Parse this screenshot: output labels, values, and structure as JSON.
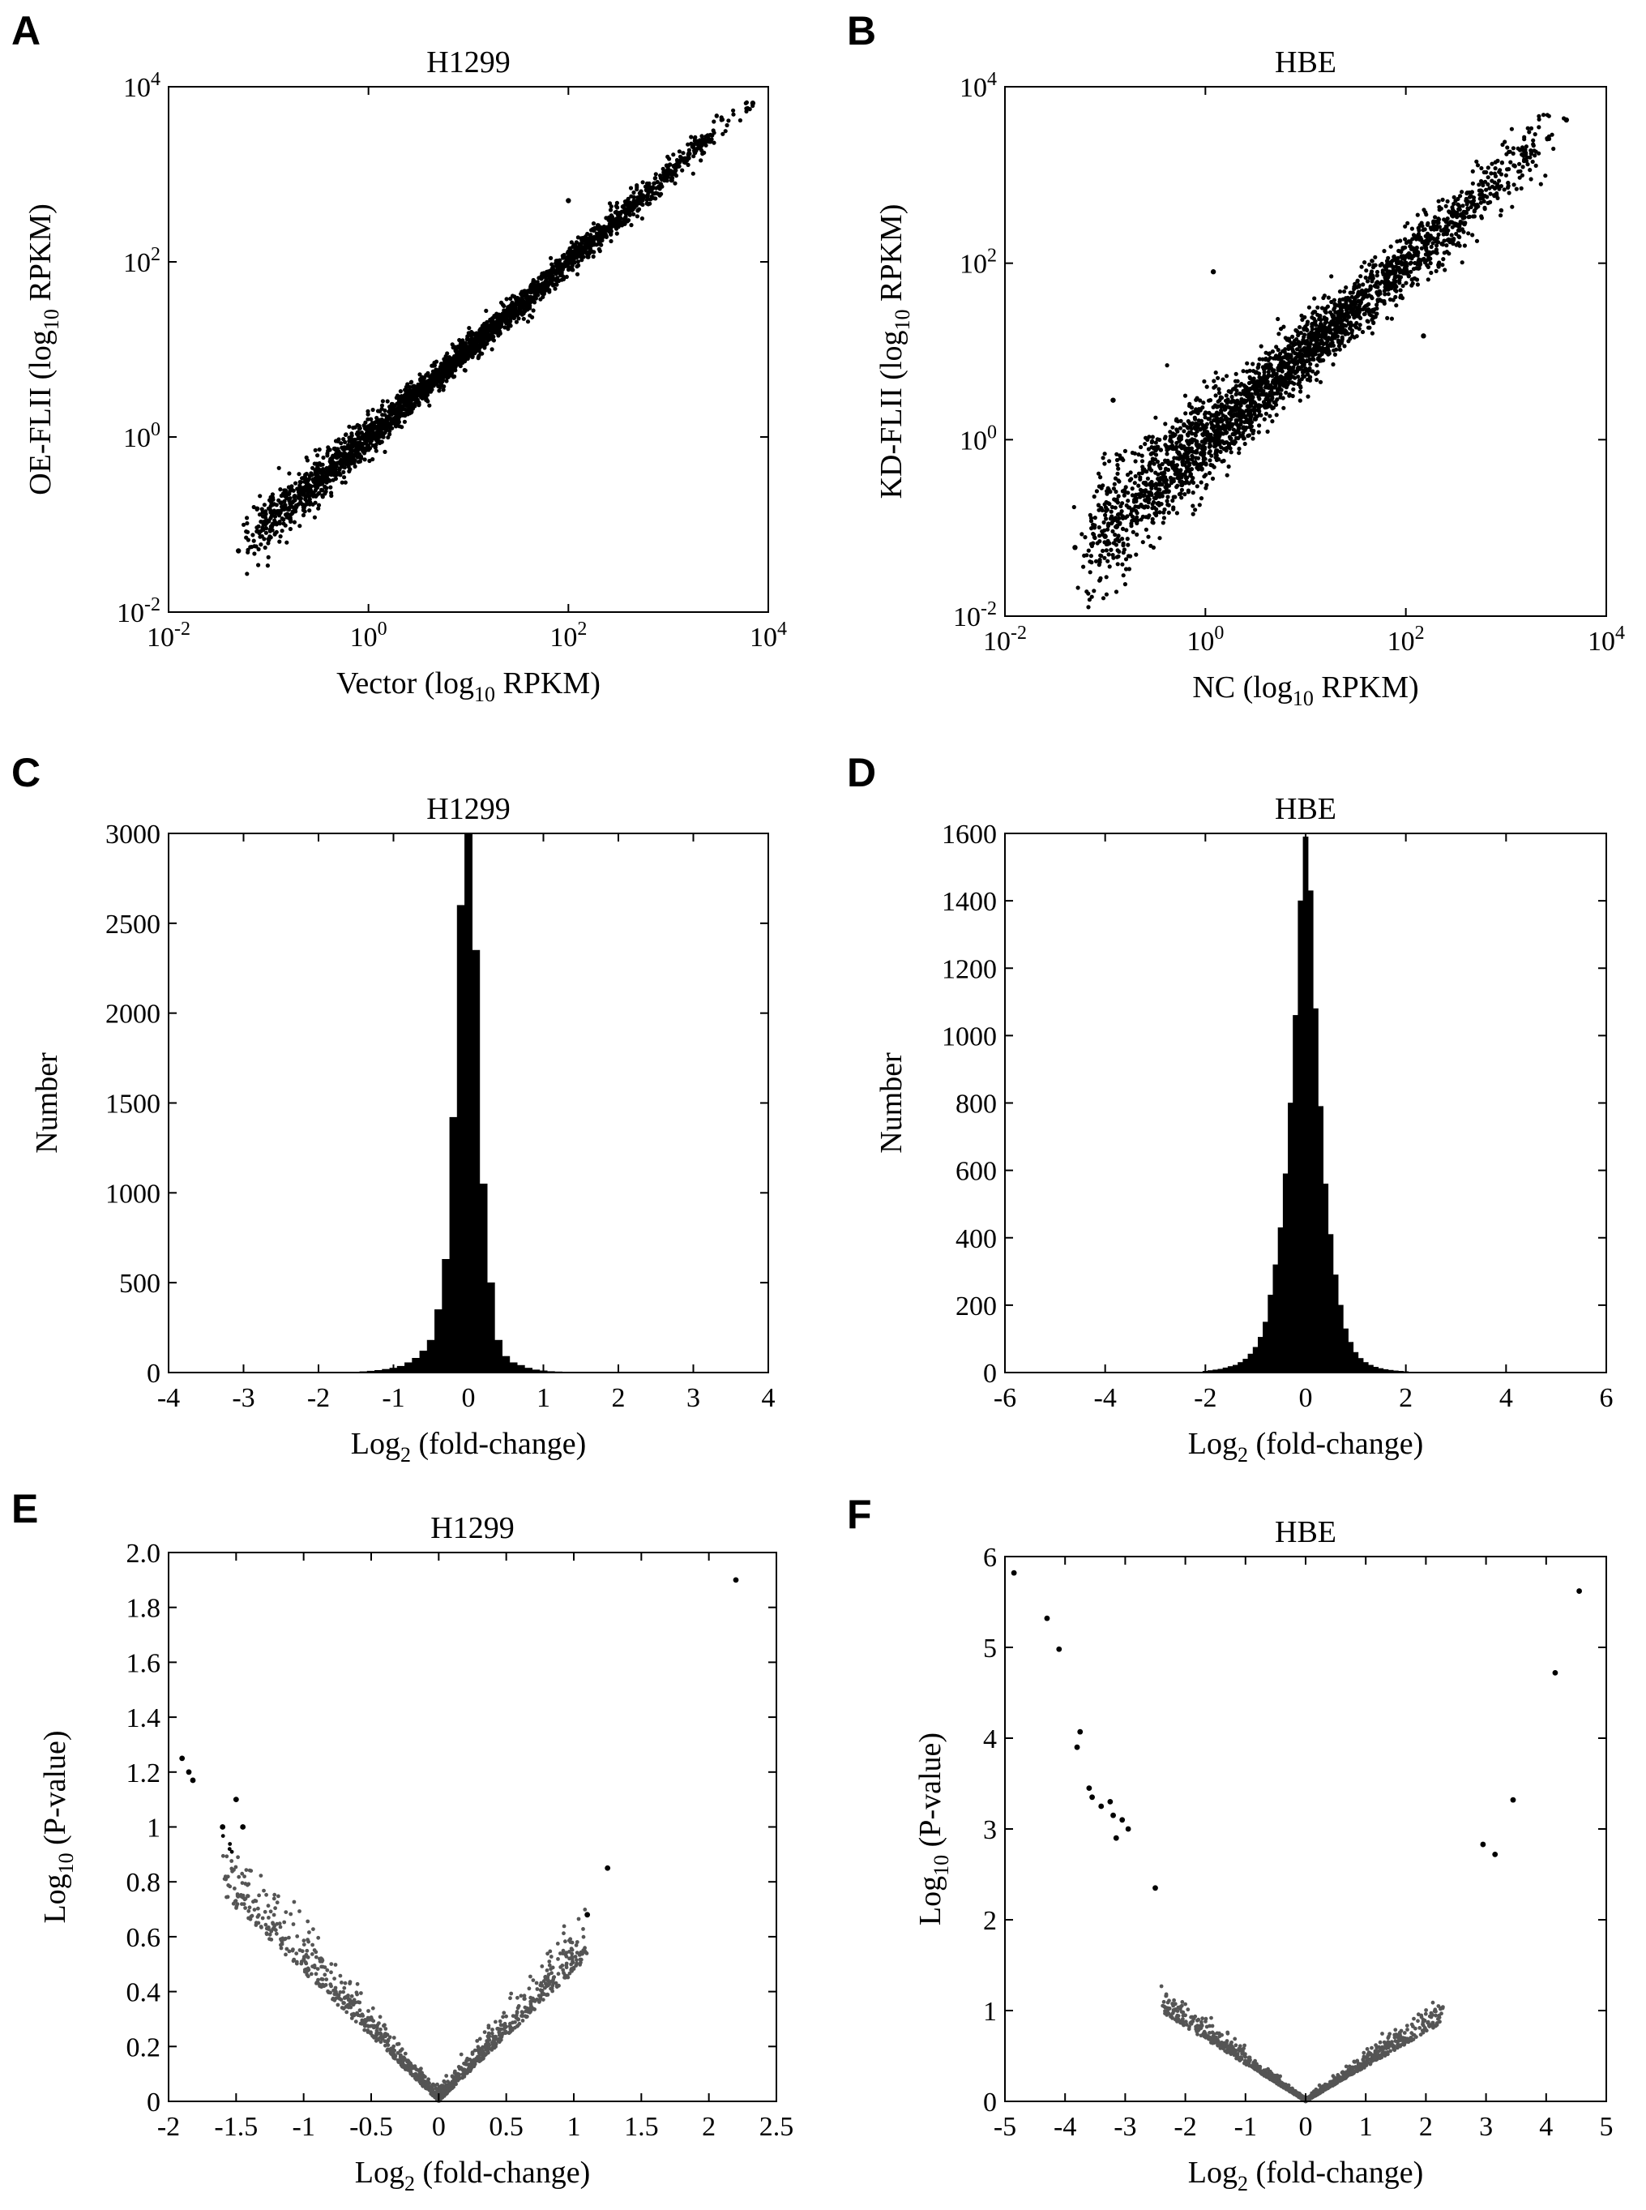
{
  "panels": [
    {
      "letter": "A",
      "title": "H1299",
      "xlabel_main": "Vector (log",
      "xlabel_sub": "10",
      "xlabel_tail": " RPKM)",
      "ylabel_main": "OE-FLII (log",
      "ylabel_sub": "10",
      "ylabel_tail": " RPKM)"
    },
    {
      "letter": "B",
      "title": "HBE",
      "xlabel_main": "NC (log",
      "xlabel_sub": "10",
      "xlabel_tail": " RPKM)",
      "ylabel_main": "KD-FLII (log",
      "ylabel_sub": "10",
      "ylabel_tail": " RPKM)"
    },
    {
      "letter": "C",
      "title": "H1299",
      "xlabel_main": "Log",
      "xlabel_sub": "2",
      "xlabel_tail": " (fold-change)",
      "ylabel_main": "Number",
      "ylabel_sub": "",
      "ylabel_tail": ""
    },
    {
      "letter": "D",
      "title": "HBE",
      "xlabel_main": "Log",
      "xlabel_sub": "2",
      "xlabel_tail": " (fold-change)",
      "ylabel_main": "Number",
      "ylabel_sub": "",
      "ylabel_tail": ""
    },
    {
      "letter": "E",
      "title": "H1299",
      "xlabel_main": "Log",
      "xlabel_sub": "2",
      "xlabel_tail": " (fold-change)",
      "ylabel_main": "Log",
      "ylabel_sub": "10",
      "ylabel_tail": " (P-value)"
    },
    {
      "letter": "F",
      "title": "HBE",
      "xlabel_main": "Log",
      "xlabel_sub": "2",
      "xlabel_tail": " (fold-change)",
      "ylabel_main": "Log",
      "ylabel_sub": "10",
      "ylabel_tail": " (P-value)"
    }
  ],
  "chart_data": [
    {
      "type": "scatter",
      "panel": "A",
      "title": "H1299",
      "scale": "log10",
      "xlim": [
        0.01,
        10000
      ],
      "ylim": [
        0.01,
        10000
      ],
      "xticks": [
        "10^-2",
        "10^0",
        "10^2",
        "10^4"
      ],
      "yticks": [
        "10^-2",
        "10^0",
        "10^2",
        "10^4"
      ],
      "trend": {
        "slope": 1.0,
        "spread_log10": 0.08
      },
      "points": [
        {
          "x": 0.05,
          "y": 0.05
        },
        {
          "x": 0.1,
          "y": 0.11
        },
        {
          "x": 0.3,
          "y": 0.28
        },
        {
          "x": 1,
          "y": 1.0
        },
        {
          "x": 10,
          "y": 10.5
        },
        {
          "x": 100,
          "y": 98
        },
        {
          "x": 1000,
          "y": 1020
        },
        {
          "x": 7000,
          "y": 6500
        },
        {
          "x": 100,
          "y": 500
        }
      ]
    },
    {
      "type": "scatter",
      "panel": "B",
      "title": "HBE",
      "scale": "log10",
      "xlim": [
        0.01,
        10000
      ],
      "ylim": [
        0.01,
        10000
      ],
      "xticks": [
        "10^-2",
        "10^0",
        "10^2",
        "10^4"
      ],
      "yticks": [
        "10^-2",
        "10^0",
        "10^2",
        "10^4"
      ],
      "trend": {
        "slope": 1.0,
        "spread_log10": 0.18
      },
      "points": [
        {
          "x": 0.05,
          "y": 0.06
        },
        {
          "x": 0.1,
          "y": 0.08
        },
        {
          "x": 1,
          "y": 1.0
        },
        {
          "x": 10,
          "y": 10
        },
        {
          "x": 100,
          "y": 100
        },
        {
          "x": 4000,
          "y": 4200
        },
        {
          "x": 1.2,
          "y": 80
        },
        {
          "x": 150,
          "y": 15
        },
        {
          "x": 0.12,
          "y": 2.8
        }
      ]
    },
    {
      "type": "bar",
      "panel": "C",
      "title": "H1299",
      "xlim": [
        -4,
        4
      ],
      "ylim": [
        0,
        3000
      ],
      "xticks": [
        "-4",
        "-3",
        "-2",
        "-1",
        "0",
        "1",
        "2",
        "3",
        "4"
      ],
      "yticks": [
        "0",
        "500",
        "1000",
        "1500",
        "2000",
        "2500",
        "3000"
      ],
      "bin_width": 0.1,
      "bins": [
        {
          "x": -1.5,
          "y": 3
        },
        {
          "x": -1.4,
          "y": 5
        },
        {
          "x": -1.3,
          "y": 8
        },
        {
          "x": -1.2,
          "y": 12
        },
        {
          "x": -1.1,
          "y": 18
        },
        {
          "x": -1.0,
          "y": 25
        },
        {
          "x": -0.9,
          "y": 35
        },
        {
          "x": -0.8,
          "y": 55
        },
        {
          "x": -0.7,
          "y": 80
        },
        {
          "x": -0.6,
          "y": 120
        },
        {
          "x": -0.5,
          "y": 180
        },
        {
          "x": -0.4,
          "y": 350
        },
        {
          "x": -0.3,
          "y": 630
        },
        {
          "x": -0.2,
          "y": 1420
        },
        {
          "x": -0.1,
          "y": 2600
        },
        {
          "x": 0.0,
          "y": 3000
        },
        {
          "x": 0.1,
          "y": 2350
        },
        {
          "x": 0.2,
          "y": 1050
        },
        {
          "x": 0.3,
          "y": 500
        },
        {
          "x": 0.4,
          "y": 180
        },
        {
          "x": 0.5,
          "y": 90
        },
        {
          "x": 0.6,
          "y": 55
        },
        {
          "x": 0.7,
          "y": 40
        },
        {
          "x": 0.8,
          "y": 25
        },
        {
          "x": 0.9,
          "y": 15
        },
        {
          "x": 1.0,
          "y": 10
        },
        {
          "x": 1.1,
          "y": 6
        },
        {
          "x": 1.2,
          "y": 4
        }
      ]
    },
    {
      "type": "bar",
      "panel": "D",
      "title": "HBE",
      "xlim": [
        -6,
        6
      ],
      "ylim": [
        0,
        1600
      ],
      "xticks": [
        "-6",
        "-4",
        "-2",
        "0",
        "2",
        "4",
        "6"
      ],
      "yticks": [
        "0",
        "200",
        "400",
        "600",
        "800",
        "1000",
        "1200",
        "1400",
        "1600"
      ],
      "bin_width": 0.1,
      "bins": [
        {
          "x": -2.0,
          "y": 4
        },
        {
          "x": -1.9,
          "y": 6
        },
        {
          "x": -1.8,
          "y": 8
        },
        {
          "x": -1.7,
          "y": 10
        },
        {
          "x": -1.6,
          "y": 14
        },
        {
          "x": -1.5,
          "y": 18
        },
        {
          "x": -1.4,
          "y": 22
        },
        {
          "x": -1.3,
          "y": 30
        },
        {
          "x": -1.2,
          "y": 40
        },
        {
          "x": -1.1,
          "y": 55
        },
        {
          "x": -1.0,
          "y": 75
        },
        {
          "x": -0.9,
          "y": 105
        },
        {
          "x": -0.8,
          "y": 150
        },
        {
          "x": -0.7,
          "y": 230
        },
        {
          "x": -0.6,
          "y": 320
        },
        {
          "x": -0.5,
          "y": 430
        },
        {
          "x": -0.4,
          "y": 590
        },
        {
          "x": -0.3,
          "y": 800
        },
        {
          "x": -0.2,
          "y": 1060
        },
        {
          "x": -0.1,
          "y": 1400
        },
        {
          "x": 0.0,
          "y": 1590
        },
        {
          "x": 0.1,
          "y": 1430
        },
        {
          "x": 0.2,
          "y": 1080
        },
        {
          "x": 0.3,
          "y": 790
        },
        {
          "x": 0.4,
          "y": 560
        },
        {
          "x": 0.5,
          "y": 410
        },
        {
          "x": 0.6,
          "y": 290
        },
        {
          "x": 0.7,
          "y": 200
        },
        {
          "x": 0.8,
          "y": 130
        },
        {
          "x": 0.9,
          "y": 90
        },
        {
          "x": 1.0,
          "y": 60
        },
        {
          "x": 1.1,
          "y": 42
        },
        {
          "x": 1.2,
          "y": 30
        },
        {
          "x": 1.3,
          "y": 22
        },
        {
          "x": 1.4,
          "y": 16
        },
        {
          "x": 1.5,
          "y": 12
        },
        {
          "x": 1.6,
          "y": 9
        },
        {
          "x": 1.7,
          "y": 7
        },
        {
          "x": 1.8,
          "y": 5
        },
        {
          "x": 1.9,
          "y": 4
        },
        {
          "x": 2.0,
          "y": 3
        }
      ]
    },
    {
      "type": "scatter",
      "panel": "E",
      "title": "H1299",
      "xlim": [
        -2,
        2.5
      ],
      "ylim": [
        0,
        2.0
      ],
      "xticks": [
        "-2",
        "-1.5",
        "-1",
        "-0.5",
        "0",
        "0.5",
        "1",
        "1.5",
        "2",
        "2.5"
      ],
      "yticks": [
        "0",
        "0.2",
        "0.4",
        "0.6",
        "0.8",
        "1",
        "1.2",
        "1.4",
        "1.6",
        "1.8",
        "2.0"
      ],
      "curve": {
        "left_coef": 0.47,
        "right_coef": 0.47,
        "spread": 0.06,
        "left_min": -1.6,
        "right_max": 1.1
      },
      "points": [
        {
          "x": -1.9,
          "y": 1.25
        },
        {
          "x": -1.85,
          "y": 1.2
        },
        {
          "x": -1.82,
          "y": 1.17
        },
        {
          "x": -1.5,
          "y": 1.1
        },
        {
          "x": -1.45,
          "y": 1.0
        },
        {
          "x": -1.6,
          "y": 1.0
        },
        {
          "x": 1.25,
          "y": 0.85
        },
        {
          "x": 1.1,
          "y": 0.68
        },
        {
          "x": 2.2,
          "y": 1.9
        }
      ]
    },
    {
      "type": "scatter",
      "panel": "F",
      "title": "HBE",
      "xlim": [
        -5,
        5
      ],
      "ylim": [
        0,
        6
      ],
      "xticks": [
        "-5",
        "-4",
        "-3",
        "-2",
        "-1",
        "0",
        "1",
        "2",
        "3",
        "4",
        "5"
      ],
      "yticks": [
        "0",
        "1",
        "2",
        "3",
        "4",
        "5",
        "6"
      ],
      "curve": {
        "left_coef": 0.41,
        "right_coef": 0.38,
        "spread": 0.05,
        "left_min": -2.4,
        "right_max": 2.3
      },
      "points": [
        {
          "x": -4.85,
          "y": 5.82
        },
        {
          "x": -4.3,
          "y": 5.32
        },
        {
          "x": -4.1,
          "y": 4.98
        },
        {
          "x": -3.75,
          "y": 4.07
        },
        {
          "x": -3.8,
          "y": 3.9
        },
        {
          "x": -3.6,
          "y": 3.45
        },
        {
          "x": -3.55,
          "y": 3.35
        },
        {
          "x": -3.4,
          "y": 3.25
        },
        {
          "x": -3.25,
          "y": 3.3
        },
        {
          "x": -3.2,
          "y": 3.15
        },
        {
          "x": -3.15,
          "y": 2.9
        },
        {
          "x": -3.05,
          "y": 3.1
        },
        {
          "x": -2.95,
          "y": 3.0
        },
        {
          "x": -2.5,
          "y": 2.35
        },
        {
          "x": 2.95,
          "y": 2.83
        },
        {
          "x": 3.15,
          "y": 2.72
        },
        {
          "x": 3.45,
          "y": 3.32
        },
        {
          "x": 4.15,
          "y": 4.72
        },
        {
          "x": 4.55,
          "y": 5.62
        }
      ]
    }
  ]
}
